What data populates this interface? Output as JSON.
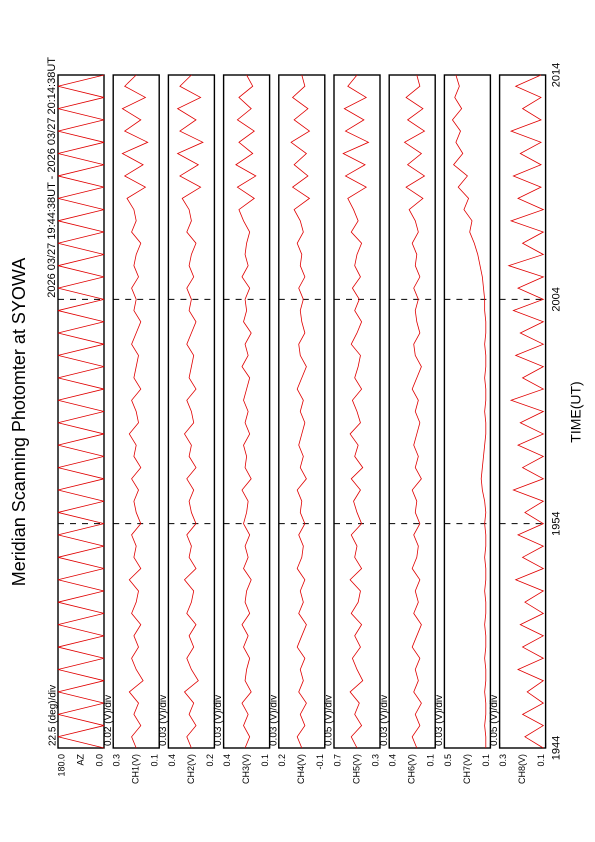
{
  "chart_data": {
    "type": "line",
    "title": "Meridian Scanning Photomter at SYOWA",
    "subtitle": "2026 03/27 19:44:38UT - 2026 03/27 20:14:38UT",
    "xlabel": "TIME(UT)",
    "color": "#e00000",
    "xlim": [
      0,
      30
    ],
    "xticks": [
      {
        "value": 0,
        "label": "1944"
      },
      {
        "value": 10,
        "label": "1954"
      },
      {
        "value": 20,
        "label": "2004"
      },
      {
        "value": 30,
        "label": "2014"
      }
    ],
    "x": [
      0,
      0.5,
      1,
      1.5,
      2,
      2.5,
      3,
      3.5,
      4,
      4.5,
      5,
      5.5,
      6,
      6.5,
      7,
      7.5,
      8,
      8.5,
      9,
      9.5,
      10,
      10.5,
      11,
      11.5,
      12,
      12.5,
      13,
      13.5,
      14,
      14.5,
      15,
      15.5,
      16,
      16.5,
      17,
      17.5,
      18,
      18.5,
      19,
      19.5,
      20,
      20.5,
      21,
      21.5,
      22,
      22.5,
      23,
      23.5,
      24,
      24.5,
      25,
      25.5,
      26,
      26.5,
      27,
      27.5,
      28,
      28.5,
      29,
      29.5,
      30
    ],
    "panels": [
      {
        "ylabel": "AZ",
        "scale_note": "22.5 (deg)/div",
        "ylim": [
          0,
          180
        ],
        "yticks": [
          {
            "value": 0,
            "label": "0.0"
          },
          {
            "value": 180,
            "label": "180.0"
          }
        ],
        "values": [
          0,
          180,
          0,
          180,
          0,
          180,
          0,
          180,
          0,
          180,
          0,
          180,
          0,
          180,
          0,
          180,
          0,
          180,
          0,
          180,
          0,
          180,
          0,
          180,
          0,
          180,
          0,
          180,
          0,
          180,
          0,
          180,
          0,
          180,
          0,
          180,
          0,
          180,
          0,
          180,
          0,
          180,
          0,
          180,
          0,
          180,
          0,
          180,
          0,
          180,
          0,
          180,
          0,
          180,
          0,
          180,
          0,
          180,
          0,
          180,
          0
        ]
      },
      {
        "ylabel": "CH1(V)",
        "scale_note": "0.02 (V)/div",
        "ylim": [
          0.1,
          0.3
        ],
        "yticks": [
          0.1,
          0.3
        ],
        "values": [
          0.2,
          0.22,
          0.18,
          0.21,
          0.19,
          0.23,
          0.17,
          0.2,
          0.22,
          0.19,
          0.21,
          0.18,
          0.22,
          0.2,
          0.19,
          0.23,
          0.18,
          0.21,
          0.2,
          0.22,
          0.18,
          0.2,
          0.21,
          0.19,
          0.22,
          0.18,
          0.21,
          0.2,
          0.23,
          0.19,
          0.2,
          0.22,
          0.18,
          0.21,
          0.2,
          0.19,
          0.22,
          0.2,
          0.18,
          0.21,
          0.2,
          0.22,
          0.19,
          0.21,
          0.2,
          0.18,
          0.22,
          0.2,
          0.21,
          0.24,
          0.16,
          0.25,
          0.17,
          0.26,
          0.15,
          0.25,
          0.18,
          0.26,
          0.16,
          0.25,
          0.2
        ]
      },
      {
        "ylabel": "CH2(V)",
        "scale_note": "0.03 (V)/div",
        "ylim": [
          0.2,
          0.4
        ],
        "yticks": [
          0.2,
          0.4
        ],
        "values": [
          0.3,
          0.32,
          0.28,
          0.31,
          0.29,
          0.33,
          0.27,
          0.3,
          0.32,
          0.29,
          0.31,
          0.28,
          0.32,
          0.3,
          0.29,
          0.33,
          0.28,
          0.31,
          0.3,
          0.32,
          0.28,
          0.3,
          0.31,
          0.29,
          0.32,
          0.28,
          0.31,
          0.3,
          0.33,
          0.29,
          0.3,
          0.32,
          0.28,
          0.31,
          0.3,
          0.29,
          0.32,
          0.3,
          0.28,
          0.31,
          0.3,
          0.32,
          0.29,
          0.31,
          0.3,
          0.28,
          0.32,
          0.3,
          0.31,
          0.34,
          0.26,
          0.35,
          0.27,
          0.36,
          0.25,
          0.35,
          0.28,
          0.36,
          0.26,
          0.35,
          0.3
        ]
      },
      {
        "ylabel": "CH3(V)",
        "scale_note": "0.03 (V)/div",
        "ylim": [
          0.1,
          0.4
        ],
        "yticks": [
          0.1,
          0.4
        ],
        "values": [
          0.26,
          0.23,
          0.27,
          0.24,
          0.28,
          0.22,
          0.26,
          0.25,
          0.23,
          0.27,
          0.24,
          0.28,
          0.23,
          0.26,
          0.25,
          0.22,
          0.27,
          0.24,
          0.26,
          0.23,
          0.27,
          0.25,
          0.24,
          0.28,
          0.22,
          0.26,
          0.25,
          0.27,
          0.23,
          0.26,
          0.24,
          0.27,
          0.25,
          0.23,
          0.28,
          0.24,
          0.26,
          0.22,
          0.27,
          0.25,
          0.26,
          0.23,
          0.28,
          0.24,
          0.26,
          0.25,
          0.23,
          0.27,
          0.3,
          0.2,
          0.31,
          0.19,
          0.32,
          0.21,
          0.3,
          0.2,
          0.31,
          0.22,
          0.3,
          0.21,
          0.25
        ]
      },
      {
        "ylabel": "CH4(V)",
        "scale_note": "0.03 (V)/div",
        "ylim": [
          -0.1,
          0.2
        ],
        "yticks": [
          -0.1,
          0.2
        ],
        "values": [
          0.05,
          0.08,
          0.03,
          0.06,
          0.02,
          0.07,
          0.04,
          0.06,
          0.03,
          0.08,
          0.05,
          0.02,
          0.07,
          0.04,
          0.06,
          0.03,
          0.08,
          0.05,
          0.04,
          0.07,
          0.03,
          0.06,
          0.05,
          0.08,
          0.02,
          0.06,
          0.04,
          0.07,
          0.05,
          0.03,
          0.06,
          0.04,
          0.08,
          0.05,
          0.02,
          0.06,
          0.07,
          0.03,
          0.05,
          0.06,
          0.04,
          0.07,
          0.03,
          0.06,
          0.05,
          0.08,
          0.04,
          0.06,
          0.1,
          0.0,
          0.11,
          0.01,
          0.1,
          0.02,
          0.12,
          0.0,
          0.1,
          0.01,
          0.11,
          0.03,
          0.05
        ]
      },
      {
        "ylabel": "CH5(V)",
        "scale_note": "0.05 (V)/div",
        "ylim": [
          0.3,
          0.7
        ],
        "yticks": [
          0.3,
          0.7
        ],
        "values": [
          0.5,
          0.55,
          0.46,
          0.52,
          0.48,
          0.56,
          0.45,
          0.5,
          0.54,
          0.47,
          0.52,
          0.46,
          0.55,
          0.49,
          0.47,
          0.56,
          0.46,
          0.52,
          0.5,
          0.55,
          0.46,
          0.5,
          0.53,
          0.47,
          0.55,
          0.45,
          0.52,
          0.49,
          0.56,
          0.47,
          0.5,
          0.54,
          0.46,
          0.52,
          0.49,
          0.47,
          0.55,
          0.5,
          0.46,
          0.52,
          0.48,
          0.54,
          0.47,
          0.52,
          0.5,
          0.46,
          0.55,
          0.49,
          0.53,
          0.58,
          0.42,
          0.6,
          0.43,
          0.62,
          0.4,
          0.6,
          0.44,
          0.61,
          0.42,
          0.58,
          0.5
        ]
      },
      {
        "ylabel": "CH6(V)",
        "scale_note": "0.03 (V)/div",
        "ylim": [
          0.1,
          0.4
        ],
        "yticks": [
          0.1,
          0.4
        ],
        "values": [
          0.22,
          0.25,
          0.2,
          0.23,
          0.19,
          0.24,
          0.21,
          0.23,
          0.2,
          0.25,
          0.22,
          0.19,
          0.24,
          0.21,
          0.23,
          0.2,
          0.25,
          0.22,
          0.21,
          0.24,
          0.2,
          0.23,
          0.22,
          0.25,
          0.19,
          0.23,
          0.21,
          0.24,
          0.22,
          0.2,
          0.23,
          0.21,
          0.25,
          0.22,
          0.19,
          0.23,
          0.24,
          0.2,
          0.22,
          0.23,
          0.21,
          0.24,
          0.2,
          0.23,
          0.22,
          0.25,
          0.21,
          0.23,
          0.27,
          0.18,
          0.29,
          0.17,
          0.28,
          0.19,
          0.3,
          0.17,
          0.28,
          0.18,
          0.29,
          0.2,
          0.22
        ]
      },
      {
        "ylabel": "CH7(V)",
        "scale_note": "0.03 (V)/div",
        "ylim": [
          0.1,
          0.5
        ],
        "yticks": [
          0.1,
          0.5
        ],
        "values": [
          0.14,
          0.14,
          0.15,
          0.14,
          0.14,
          0.15,
          0.14,
          0.14,
          0.15,
          0.14,
          0.14,
          0.15,
          0.14,
          0.14,
          0.15,
          0.14,
          0.14,
          0.15,
          0.14,
          0.14,
          0.15,
          0.14,
          0.15,
          0.17,
          0.18,
          0.17,
          0.16,
          0.15,
          0.14,
          0.14,
          0.15,
          0.14,
          0.14,
          0.15,
          0.14,
          0.14,
          0.15,
          0.14,
          0.14,
          0.15,
          0.15,
          0.16,
          0.17,
          0.19,
          0.21,
          0.24,
          0.28,
          0.26,
          0.33,
          0.29,
          0.38,
          0.3,
          0.42,
          0.34,
          0.4,
          0.36,
          0.43,
          0.35,
          0.41,
          0.37,
          0.4
        ]
      },
      {
        "ylabel": "CH8(V)",
        "scale_note": "0.05 (V)/div",
        "ylim": [
          0.1,
          0.3
        ],
        "yticks": [
          0.1,
          0.3
        ],
        "values": [
          0.11,
          0.19,
          0.11,
          0.2,
          0.11,
          0.18,
          0.11,
          0.22,
          0.11,
          0.2,
          0.11,
          0.21,
          0.11,
          0.19,
          0.11,
          0.23,
          0.11,
          0.2,
          0.11,
          0.22,
          0.11,
          0.19,
          0.11,
          0.24,
          0.11,
          0.2,
          0.11,
          0.22,
          0.11,
          0.21,
          0.11,
          0.25,
          0.11,
          0.2,
          0.11,
          0.23,
          0.11,
          0.21,
          0.11,
          0.24,
          0.11,
          0.22,
          0.11,
          0.26,
          0.11,
          0.2,
          0.11,
          0.25,
          0.11,
          0.22,
          0.12,
          0.24,
          0.12,
          0.21,
          0.12,
          0.25,
          0.12,
          0.2,
          0.12,
          0.23,
          0.12
        ]
      }
    ]
  }
}
